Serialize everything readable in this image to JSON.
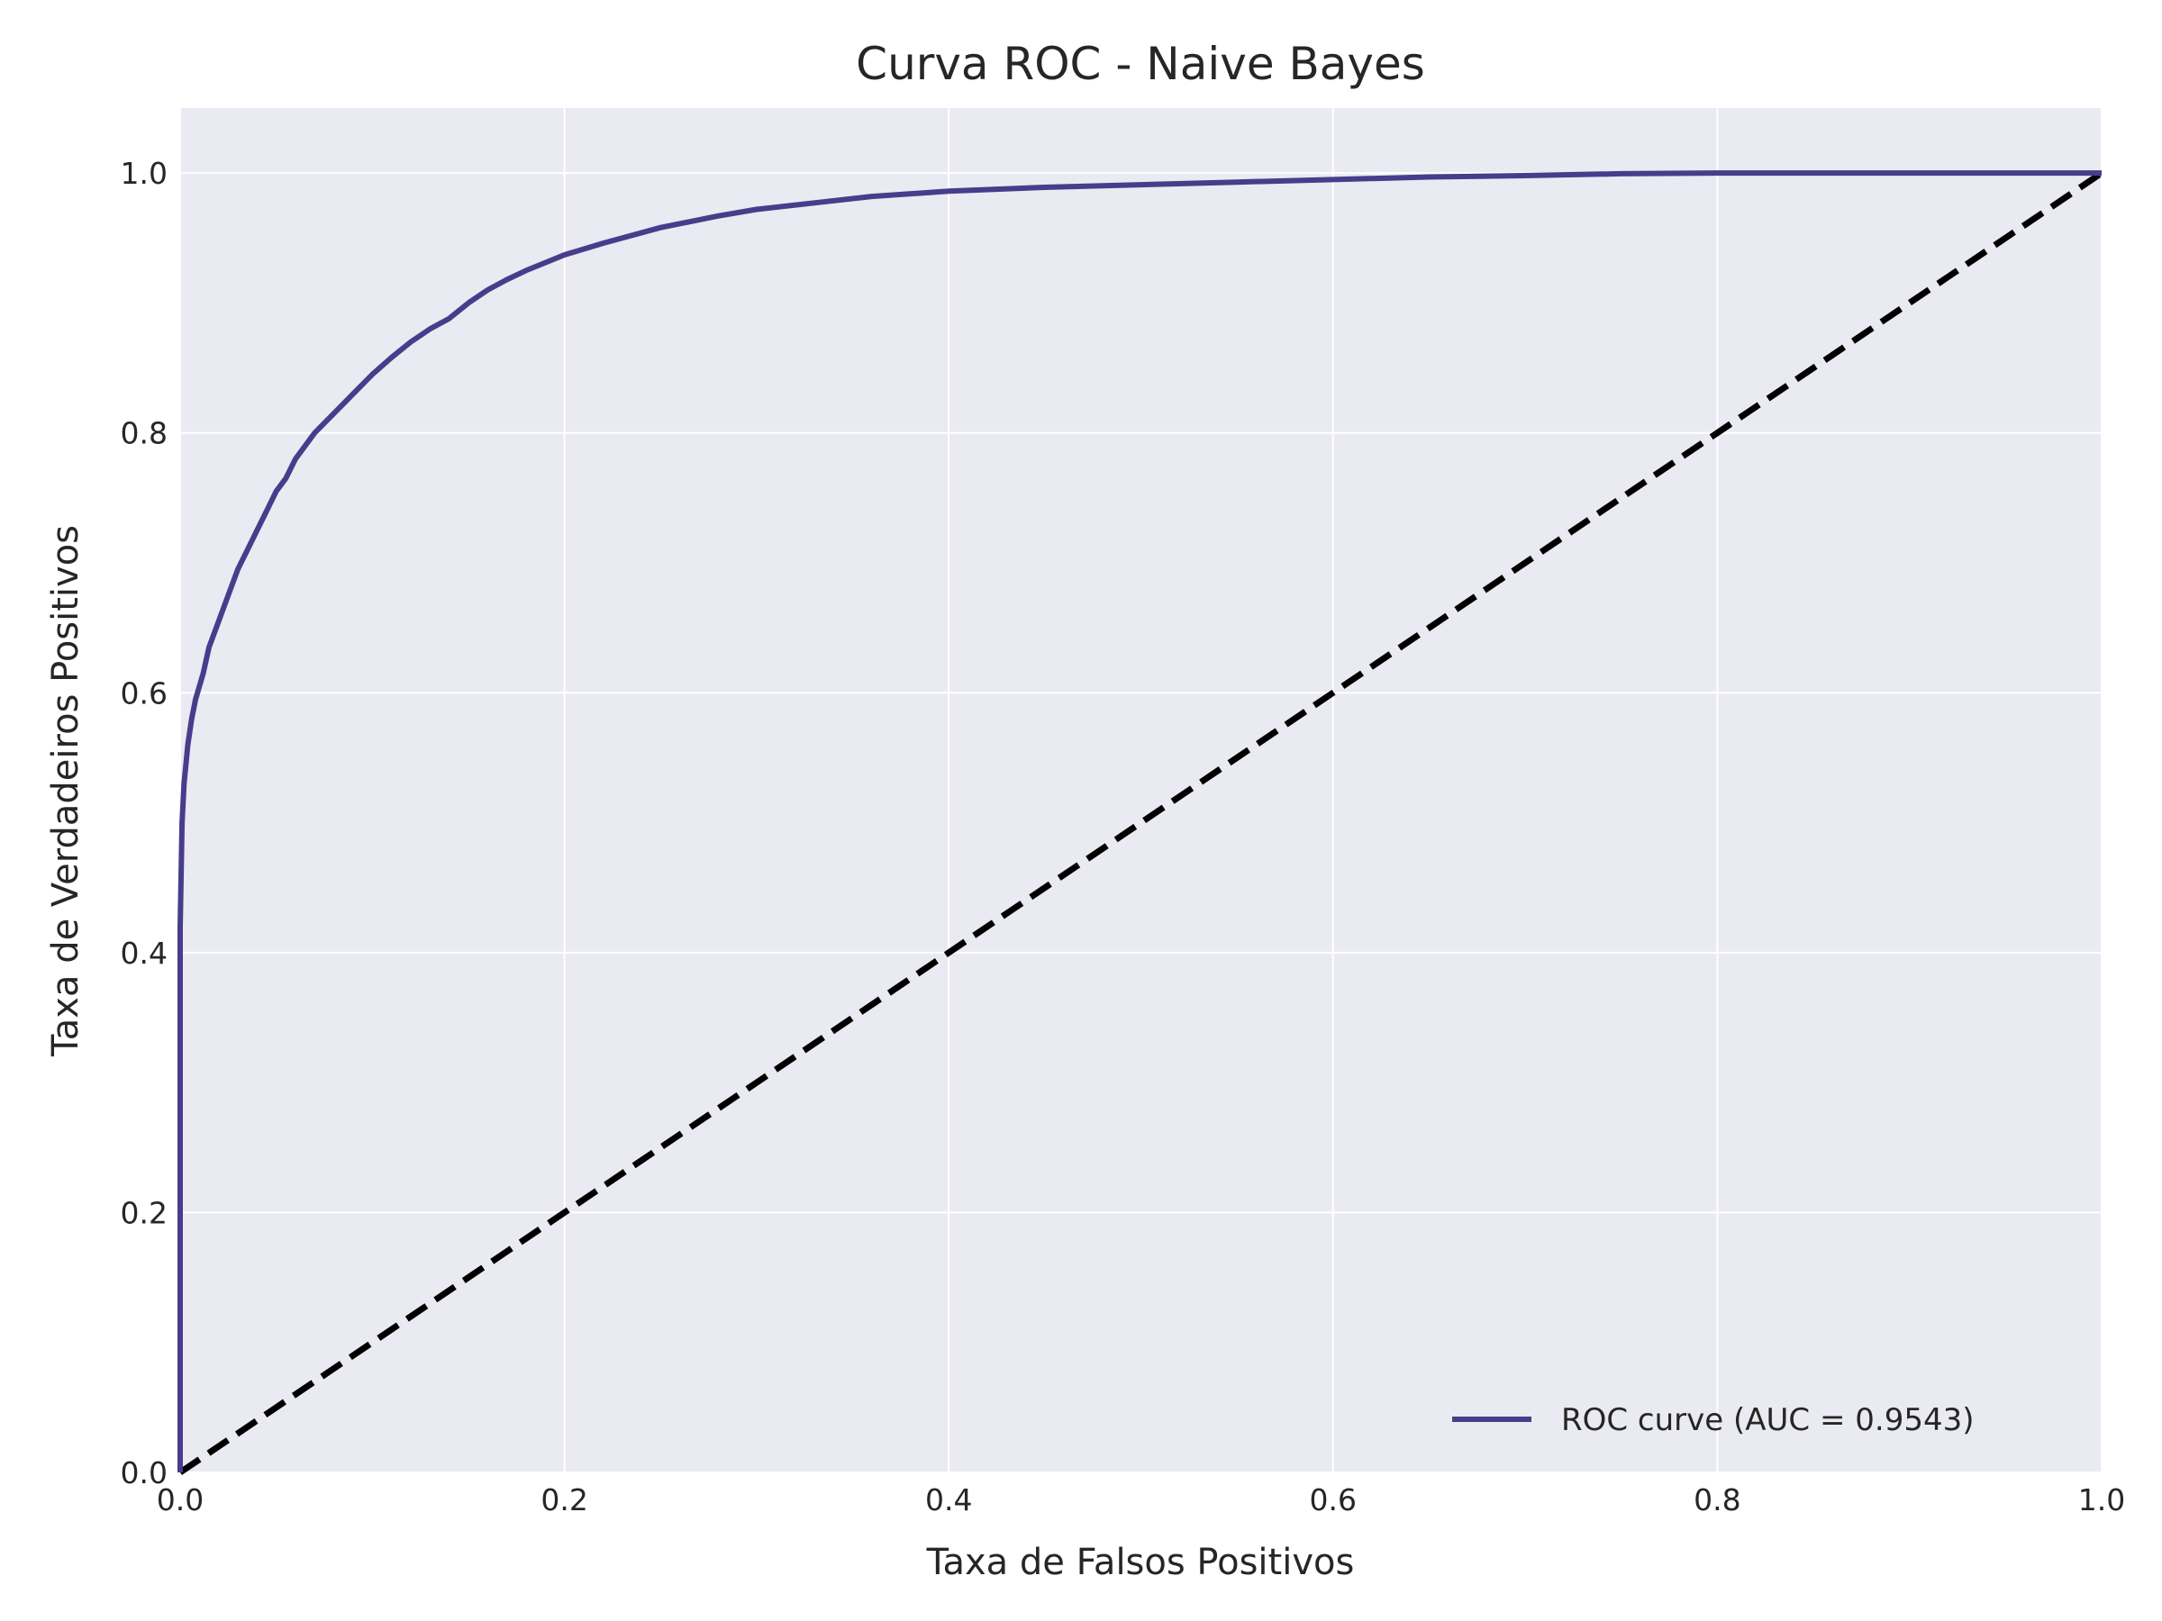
{
  "chart_data": {
    "type": "line",
    "title": "Curva ROC - Naive Bayes",
    "xlabel": "Taxa de Falsos Positivos",
    "ylabel": "Taxa de Verdadeiros Positivos",
    "xlim": [
      0.0,
      1.0
    ],
    "ylim": [
      0.0,
      1.05
    ],
    "x_ticks": [
      "0.0",
      "0.2",
      "0.4",
      "0.6",
      "0.8",
      "1.0"
    ],
    "y_ticks": [
      "0.0",
      "0.2",
      "0.4",
      "0.6",
      "0.8",
      "1.0"
    ],
    "grid": true,
    "legend_position": "lower right",
    "background_color": "#eaeaf2",
    "series": [
      {
        "name": "ROC curve (AUC = 0.9543)",
        "color": "#483d8b",
        "style": "solid",
        "x": [
          0.0,
          0.0,
          0.001,
          0.002,
          0.004,
          0.006,
          0.008,
          0.012,
          0.015,
          0.02,
          0.025,
          0.03,
          0.035,
          0.04,
          0.045,
          0.05,
          0.055,
          0.06,
          0.07,
          0.08,
          0.09,
          0.1,
          0.11,
          0.12,
          0.13,
          0.14,
          0.15,
          0.16,
          0.17,
          0.18,
          0.2,
          0.22,
          0.25,
          0.28,
          0.3,
          0.33,
          0.36,
          0.4,
          0.45,
          0.5,
          0.55,
          0.6,
          0.65,
          0.7,
          0.75,
          0.8,
          0.9,
          1.0
        ],
        "y": [
          0.0,
          0.42,
          0.5,
          0.53,
          0.56,
          0.58,
          0.595,
          0.615,
          0.635,
          0.655,
          0.675,
          0.695,
          0.71,
          0.725,
          0.74,
          0.755,
          0.765,
          0.78,
          0.8,
          0.815,
          0.83,
          0.845,
          0.858,
          0.87,
          0.88,
          0.888,
          0.9,
          0.91,
          0.918,
          0.925,
          0.937,
          0.946,
          0.958,
          0.967,
          0.972,
          0.977,
          0.982,
          0.986,
          0.989,
          0.991,
          0.993,
          0.995,
          0.997,
          0.998,
          0.9995,
          1.0,
          1.0,
          1.0
        ]
      },
      {
        "name": "",
        "color": "#000000",
        "style": "dashed",
        "x": [
          0.0,
          1.0
        ],
        "y": [
          0.0,
          1.0
        ]
      }
    ],
    "legend": {
      "entries": [
        "ROC curve (AUC = 0.9543)"
      ]
    }
  }
}
